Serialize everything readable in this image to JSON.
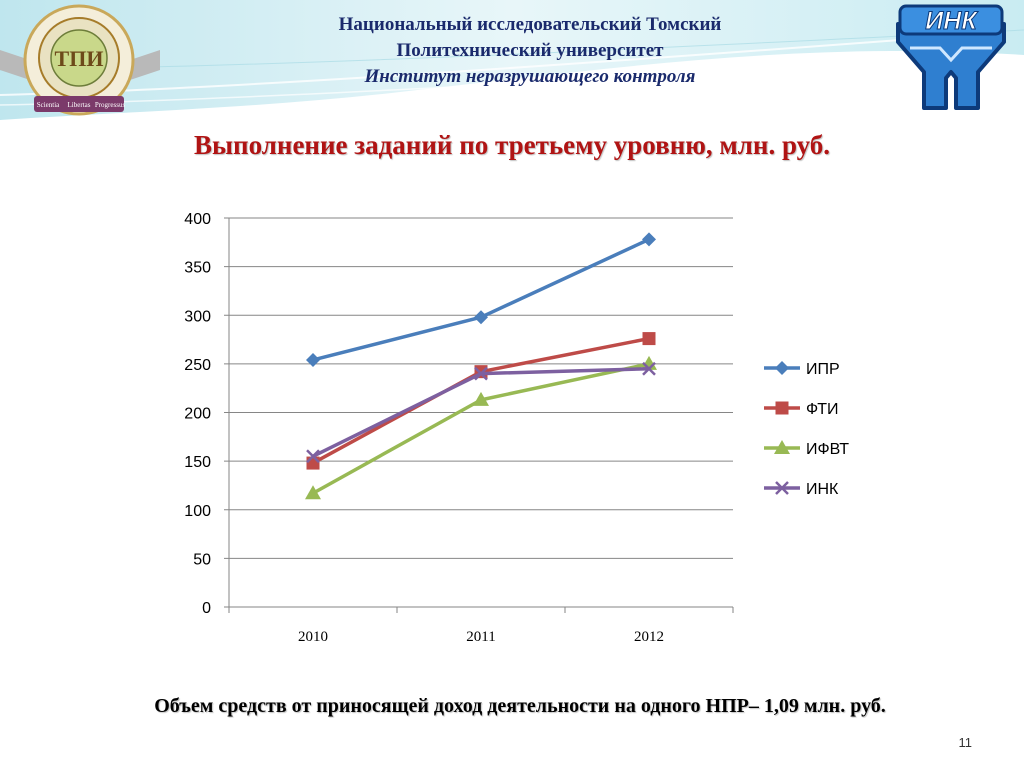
{
  "header": {
    "line1": "Национальный исследовательский Томский",
    "line2": "Политехнический  университет",
    "line3": "Институт неразрушающего контроля"
  },
  "slide_title": "Выполнение заданий по третьему уровню, млн. руб.",
  "footnote": "Объем средств от приносящей доход деятельности на одного НПР– 1,09 млн. руб.",
  "page_number": "11",
  "logo_left": {
    "icon": "university-seal-icon",
    "letters": "ТПИ",
    "ribbon": [
      "Scientia",
      "Libertas",
      "Progressus"
    ]
  },
  "logo_right": {
    "icon": "ink-institute-logo-icon",
    "text": "ИНК"
  },
  "colors": {
    "header_text": "#1a2a6c",
    "title_text": "#b01414",
    "ipr": "#4a7ebb",
    "fti": "#be4b48",
    "ifvt": "#98b954",
    "ink": "#7d60a0"
  },
  "chart_data": {
    "type": "line",
    "title": "",
    "xlabel": "",
    "ylabel": "",
    "categories": [
      "2010",
      "2011",
      "2012"
    ],
    "ylim": [
      0,
      400
    ],
    "yticks": [
      "0",
      "50",
      "100",
      "150",
      "200",
      "250",
      "300",
      "350",
      "400"
    ],
    "grid": true,
    "legend_position": "right",
    "series": [
      {
        "name": "ИПР",
        "values": [
          254,
          298,
          378
        ],
        "color": "#4a7ebb",
        "marker": "diamond"
      },
      {
        "name": "ФТИ",
        "values": [
          148,
          242,
          276
        ],
        "color": "#be4b48",
        "marker": "square"
      },
      {
        "name": "ИФВТ",
        "values": [
          117,
          213,
          250
        ],
        "color": "#98b954",
        "marker": "triangle"
      },
      {
        "name": "ИНК",
        "values": [
          155,
          240,
          245
        ],
        "color": "#7d60a0",
        "marker": "x"
      }
    ]
  }
}
